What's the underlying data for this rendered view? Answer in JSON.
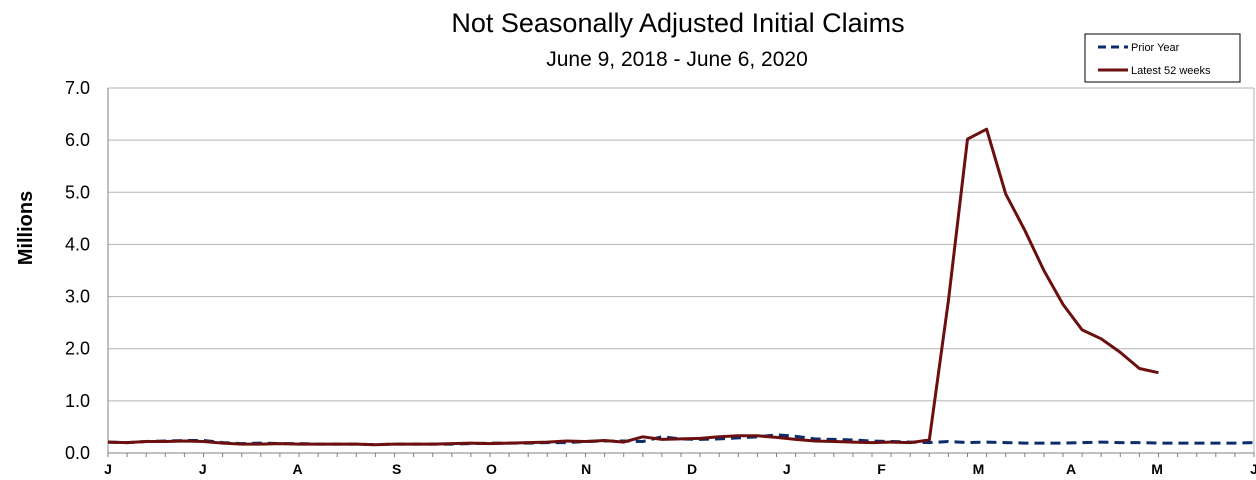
{
  "chart_data": {
    "type": "line",
    "title": "Not Seasonally Adjusted Initial Claims",
    "subtitle": "June 9, 2018 - June 6, 2020",
    "xlabel": "",
    "ylabel": "Millions",
    "ylim": [
      0,
      7
    ],
    "yticks": [
      "0.0",
      "1.0",
      "2.0",
      "3.0",
      "4.0",
      "5.0",
      "6.0",
      "7.0"
    ],
    "xticks": [
      "J",
      "J",
      "A",
      "S",
      "O",
      "N",
      "D",
      "J",
      "F",
      "M",
      "A",
      "M",
      "J"
    ],
    "grid": true,
    "legend_position": "top-right",
    "colors": {
      "prior_year": "#0b2d6b",
      "latest": "#6b0f0f",
      "grid": "#b3b3b3",
      "axis": "#808080"
    },
    "series": [
      {
        "name": "Prior Year",
        "style": "dashed",
        "values": [
          0.21,
          0.2,
          0.22,
          0.23,
          0.24,
          0.24,
          0.2,
          0.18,
          0.19,
          0.18,
          0.18,
          0.17,
          0.17,
          0.17,
          0.16,
          0.17,
          0.17,
          0.17,
          0.17,
          0.18,
          0.19,
          0.19,
          0.19,
          0.2,
          0.2,
          0.22,
          0.23,
          0.23,
          0.22,
          0.31,
          0.27,
          0.26,
          0.27,
          0.29,
          0.31,
          0.35,
          0.32,
          0.27,
          0.26,
          0.25,
          0.23,
          0.22,
          0.21,
          0.2,
          0.22,
          0.2,
          0.21,
          0.2,
          0.19,
          0.19,
          0.19,
          0.2,
          0.21,
          0.2,
          0.2,
          0.19,
          0.19,
          0.19,
          0.19,
          0.19,
          0.2
        ]
      },
      {
        "name": "Latest 52 weeks",
        "style": "solid",
        "values": [
          0.21,
          0.2,
          0.22,
          0.22,
          0.23,
          0.22,
          0.19,
          0.17,
          0.17,
          0.18,
          0.17,
          0.17,
          0.17,
          0.17,
          0.16,
          0.17,
          0.17,
          0.17,
          0.18,
          0.19,
          0.18,
          0.19,
          0.2,
          0.21,
          0.23,
          0.22,
          0.24,
          0.21,
          0.31,
          0.26,
          0.27,
          0.28,
          0.31,
          0.33,
          0.33,
          0.3,
          0.26,
          0.23,
          0.22,
          0.21,
          0.2,
          0.21,
          0.2,
          0.25,
          2.92,
          6.02,
          6.21,
          4.97,
          4.27,
          3.5,
          2.85,
          2.36,
          2.19,
          1.93,
          1.62,
          1.54
        ]
      }
    ]
  }
}
